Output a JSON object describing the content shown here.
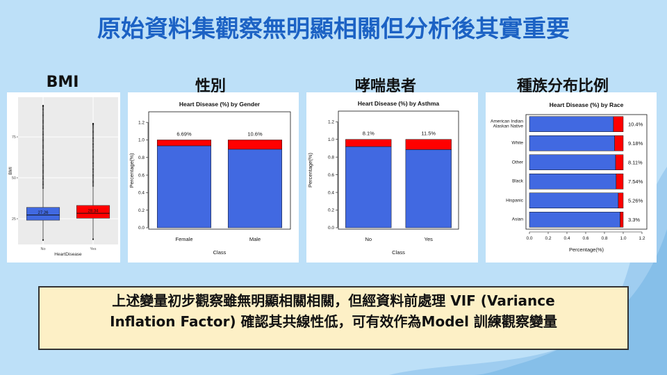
{
  "title": "原始資料集觀察無明顯相關但分析後其實重要",
  "panels": [
    "BMI",
    "性別",
    "哮喘患者",
    "種族分布比例"
  ],
  "note": [
    "上述變量初步觀察雖無明顯相關相關，但經資料前處理  VIF (Variance",
    "Inflation Factor) 確認其共線性低，可有效作為Model  訓練觀察變量"
  ],
  "chart_data": [
    {
      "type": "box",
      "xlabel": "HeartDisease",
      "ylabel": "BMI",
      "categories": [
        "No",
        "Yes"
      ],
      "colors": [
        "#4169e1",
        "#ff0000"
      ],
      "boxes": [
        {
          "min": 12,
          "q1": 24.1,
          "median": 27.26,
          "q3": 31.9,
          "max": 43.5,
          "outlier_max": 94
        },
        {
          "min": 12.5,
          "q1": 25.3,
          "median": 28.34,
          "q3": 33.1,
          "max": 44.7,
          "outlier_max": 83
        }
      ],
      "ylim": [
        9.3,
        99.2
      ],
      "yticks": [
        25,
        50,
        75
      ],
      "grid": true
    },
    {
      "type": "bar",
      "orientation": "vertical",
      "title": "Heart Disease (%) by Gender",
      "xlabel": "Class",
      "ylabel": "Percentage(%)",
      "categories": [
        "Female",
        "Male"
      ],
      "series": [
        {
          "color": "#4169e1",
          "values": [
            0.9331,
            0.894
          ]
        },
        {
          "color": "#ff0000",
          "values": [
            0.0669,
            0.106
          ],
          "value_labels": [
            "6.69%",
            "10.6%"
          ]
        }
      ],
      "ylim": [
        -0.016,
        1.32
      ],
      "yticks": [
        {
          "value": 0,
          "label": "0.0"
        },
        0.2,
        0.4,
        0.6,
        0.8,
        {
          "value": 1,
          "label": "1.0"
        },
        1.2
      ]
    },
    {
      "type": "bar",
      "orientation": "vertical",
      "title": "Heart Disease (%) by Asthma",
      "xlabel": "Class",
      "ylabel": "Percentage(%)",
      "categories": [
        "No",
        "Yes"
      ],
      "series": [
        {
          "color": "#4169e1",
          "values": [
            0.919,
            0.885
          ]
        },
        {
          "color": "#ff0000",
          "values": [
            0.081,
            0.115
          ],
          "value_labels": [
            "8.1%",
            "11.5%"
          ]
        }
      ],
      "ylim": [
        -0.016,
        1.32
      ],
      "yticks": [
        {
          "value": 0,
          "label": "0.0"
        },
        0.2,
        0.4,
        0.6,
        0.8,
        {
          "value": 1,
          "label": "1.0"
        },
        1.2
      ]
    },
    {
      "type": "bar",
      "orientation": "horizontal",
      "title": "Heart Disease (%) by Race",
      "xlabel": "Percentage(%)",
      "categories": [
        "American Indian\nAlaskan Native",
        "White",
        "Other",
        "Black",
        "Hispanic",
        "Asian"
      ],
      "series": [
        {
          "color": "#4169e1",
          "values": [
            0.896,
            0.9082,
            0.9189,
            0.9246,
            0.9474,
            0.967
          ]
        },
        {
          "color": "#ff0000",
          "values": [
            0.104,
            0.0918,
            0.0811,
            0.0754,
            0.0526,
            0.033
          ],
          "value_labels": [
            "10.4%",
            "9.18%",
            "8.11%",
            "7.54%",
            "5.26%",
            "3.3%"
          ]
        }
      ],
      "xlim": [
        -0.037,
        1.252
      ],
      "xticks": [
        {
          "value": 0,
          "label": "0.0"
        },
        0.2,
        0.4,
        0.6,
        0.8,
        {
          "value": 1,
          "label": "1.0"
        },
        1.2
      ]
    }
  ]
}
